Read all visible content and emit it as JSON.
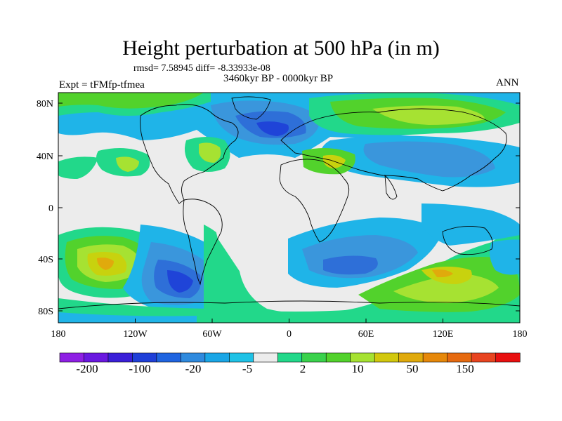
{
  "title": "Height perturbation at 500 hPa (in m)",
  "stats": "rmsd= 7.58945  diff= -8.33933e-08",
  "period": "3460kyr BP - 0000kyr BP",
  "expt": "Expt = tFMfp-tfmea",
  "season": "ANN",
  "y_ticks": [
    "80N",
    "40N",
    "0",
    "40S",
    "80S"
  ],
  "x_ticks": [
    "180",
    "120W",
    "60W",
    "0",
    "60E",
    "120E",
    "180"
  ],
  "colorbar_labels": [
    "-200",
    "-100",
    "-20",
    "-5",
    "2",
    "10",
    "50",
    "150"
  ],
  "colors": {
    "c_neg5": "#0000e0",
    "c_neg4": "#1f44d8",
    "c_neg3": "#2e6fd8",
    "c_neg2": "#3a96dc",
    "c_neg1": "#1fb4e8",
    "c_zero": "#ececec",
    "c_pos1": "#22d88a",
    "c_pos2": "#52d22c",
    "c_pos3": "#a6e232",
    "c_pos4": "#c8d20e",
    "c_pos5": "#e0aa0c",
    "c_pos6": "#e8700a"
  },
  "colorbar_colors": [
    "#8e1fe4",
    "#6a18e0",
    "#3a1fd8",
    "#1f3fd8",
    "#1f64e0",
    "#2f8ade",
    "#1aa6e6",
    "#1fc2e6",
    "#ececec",
    "#22d88a",
    "#3ad24c",
    "#52d22c",
    "#a6e232",
    "#d2c80e",
    "#e0aa0c",
    "#e6880a",
    "#e66a10",
    "#e84420",
    "#e81010"
  ]
}
